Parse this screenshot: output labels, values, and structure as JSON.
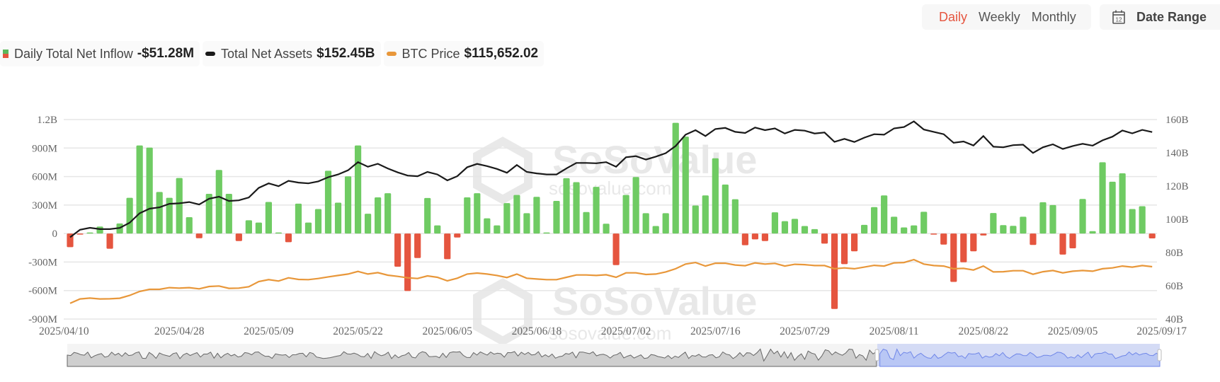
{
  "controls": {
    "periods": [
      {
        "label": "Daily",
        "active": true
      },
      {
        "label": "Weekly",
        "active": false
      },
      {
        "label": "Monthly",
        "active": false
      }
    ],
    "date_range_label": "Date Range",
    "date_range_icon": "calendar-icon",
    "calendar_day": "12"
  },
  "legend": [
    {
      "label": "Daily Total Net Inflow",
      "value": "-$51.28M"
    },
    {
      "label": "Total Net Assets",
      "value": "$152.45B"
    },
    {
      "label": "BTC Price",
      "value": "$115,652.02"
    }
  ],
  "watermark": "SoSoValue",
  "watermark_sub": "sosovalue.com",
  "colors": {
    "inflow_positive": "#6fcb63",
    "inflow_negative": "#e5553f",
    "net_assets": "#1a1a1a",
    "btc_price": "#e8973a",
    "navigator_selection": "#b9c7f5"
  },
  "chart_data": {
    "type": "bar+line",
    "grid": true,
    "legend_position": "top-left",
    "left_axis": {
      "ticks": [
        "-900M",
        "-600M",
        "-300M",
        "0",
        "300M",
        "600M",
        "900M",
        "1.2B"
      ],
      "range_millions": [
        -900,
        1200
      ]
    },
    "right_axis": {
      "ticks": [
        "40B",
        "60B",
        "80B",
        "100B",
        "120B",
        "140B",
        "160B"
      ],
      "range_billions": [
        40,
        160
      ]
    },
    "x_ticks": [
      "2025/04/10",
      "2025/04/28",
      "2025/05/09",
      "2025/05/22",
      "2025/06/05",
      "2025/06/18",
      "2025/07/02",
      "2025/07/16",
      "2025/07/29",
      "2025/08/11",
      "2025/08/22",
      "2025/09/05",
      "2025/09/17"
    ],
    "categories": [
      "2025/04/10",
      "2025/04/11",
      "2025/04/14",
      "2025/04/15",
      "2025/04/16",
      "2025/04/17",
      "2025/04/21",
      "2025/04/22",
      "2025/04/23",
      "2025/04/24",
      "2025/04/25",
      "2025/04/28",
      "2025/04/29",
      "2025/04/30",
      "2025/05/01",
      "2025/05/02",
      "2025/05/05",
      "2025/05/06",
      "2025/05/07",
      "2025/05/08",
      "2025/05/09",
      "2025/05/12",
      "2025/05/13",
      "2025/05/14",
      "2025/05/15",
      "2025/05/16",
      "2025/05/19",
      "2025/05/20",
      "2025/05/21",
      "2025/05/22",
      "2025/05/23",
      "2025/05/27",
      "2025/05/28",
      "2025/05/29",
      "2025/05/30",
      "2025/06/02",
      "2025/06/03",
      "2025/06/04",
      "2025/06/05",
      "2025/06/06",
      "2025/06/09",
      "2025/06/10",
      "2025/06/11",
      "2025/06/12",
      "2025/06/13",
      "2025/06/16",
      "2025/06/17",
      "2025/06/18",
      "2025/06/20",
      "2025/06/23",
      "2025/06/24",
      "2025/06/25",
      "2025/06/26",
      "2025/06/27",
      "2025/06/30",
      "2025/07/01",
      "2025/07/02",
      "2025/07/03",
      "2025/07/07",
      "2025/07/08",
      "2025/07/09",
      "2025/07/10",
      "2025/07/11",
      "2025/07/14",
      "2025/07/15",
      "2025/07/16",
      "2025/07/17",
      "2025/07/18",
      "2025/07/21",
      "2025/07/22",
      "2025/07/23",
      "2025/07/24",
      "2025/07/25",
      "2025/07/28",
      "2025/07/29",
      "2025/07/30",
      "2025/07/31",
      "2025/08/01",
      "2025/08/04",
      "2025/08/05",
      "2025/08/06",
      "2025/08/07",
      "2025/08/08",
      "2025/08/11",
      "2025/08/12",
      "2025/08/13",
      "2025/08/14",
      "2025/08/15",
      "2025/08/18",
      "2025/08/19",
      "2025/08/20",
      "2025/08/21",
      "2025/08/22",
      "2025/08/25",
      "2025/08/26",
      "2025/08/27",
      "2025/08/28",
      "2025/08/29",
      "2025/09/02",
      "2025/09/03",
      "2025/09/04",
      "2025/09/05",
      "2025/09/08",
      "2025/09/09",
      "2025/09/10",
      "2025/09/11",
      "2025/09/12",
      "2025/09/15",
      "2025/09/16",
      "2025/09/17"
    ],
    "series": [
      {
        "name": "Daily Total Net Inflow",
        "unit": "M USD",
        "type": "bar",
        "axis": "left",
        "values": [
          -143,
          -5,
          2,
          74,
          -160,
          106,
          376,
          927,
          905,
          438,
          376,
          585,
          172,
          -49,
          418,
          669,
          418,
          -79,
          140,
          116,
          332,
          2,
          -91,
          315,
          116,
          258,
          661,
          325,
          602,
          927,
          209,
          381,
          425,
          -349,
          -605,
          -258,
          374,
          86,
          -270,
          -42,
          381,
          425,
          160,
          86,
          320,
          406,
          214,
          386,
          3,
          344,
          583,
          541,
          226,
          492,
          103,
          -332,
          406,
          595,
          214,
          79,
          214,
          1166,
          1020,
          295,
          401,
          792,
          516,
          361,
          -123,
          -61,
          -79,
          224,
          130,
          155,
          79,
          47,
          -106,
          -794,
          -322,
          -187,
          91,
          278,
          401,
          177,
          64,
          86,
          229,
          -10,
          -116,
          -509,
          -302,
          -187,
          -20,
          216,
          89,
          81,
          177,
          -120,
          330,
          300,
          -221,
          -155,
          364,
          25,
          750,
          546,
          634,
          258,
          288,
          -51.28
        ]
      },
      {
        "name": "Total Net Assets",
        "unit": "B USD",
        "type": "line",
        "axis": "right",
        "values": [
          89.2,
          93.7,
          94.9,
          94.1,
          94.1,
          94.8,
          97.9,
          103.6,
          106.4,
          107.2,
          109.3,
          109.6,
          110.4,
          108.9,
          112.4,
          113.6,
          111.0,
          111.4,
          113.1,
          118.9,
          121.6,
          119.9,
          123.1,
          122.1,
          121.6,
          122.8,
          125.3,
          127.0,
          129.5,
          134.4,
          131.6,
          133.4,
          130.6,
          128.2,
          126.3,
          125.9,
          128.5,
          127.0,
          123.4,
          125.9,
          131.3,
          133.3,
          132.0,
          130.3,
          128.0,
          132.7,
          128.5,
          127.6,
          127.0,
          127.0,
          130.6,
          133.9,
          133.9,
          133.7,
          134.4,
          131.6,
          137.3,
          138.0,
          135.9,
          137.7,
          139.8,
          144.1,
          150.9,
          153.6,
          150.1,
          154.3,
          155.0,
          152.6,
          151.9,
          155.2,
          153.6,
          154.7,
          151.6,
          153.8,
          153.3,
          151.6,
          152.2,
          146.6,
          148.4,
          146.5,
          149.1,
          151.2,
          150.9,
          154.7,
          155.5,
          158.9,
          154.0,
          152.6,
          151.2,
          146.0,
          146.8,
          144.4,
          150.1,
          143.7,
          143.3,
          144.6,
          144.9,
          139.9,
          143.3,
          145.1,
          142.3,
          144.1,
          145.4,
          144.3,
          147.5,
          149.7,
          153.4,
          151.7,
          153.8,
          152.45
        ]
      },
      {
        "name": "BTC Price",
        "unit": "USD",
        "type": "line",
        "axis": "hidden",
        "values": [
          79600,
          83800,
          84700,
          83800,
          84000,
          84500,
          87300,
          91200,
          93300,
          93300,
          95000,
          94500,
          95000,
          93800,
          96100,
          96600,
          94300,
          94500,
          95900,
          101000,
          102900,
          101500,
          104700,
          103100,
          102900,
          104000,
          105600,
          107000,
          108400,
          111000,
          108400,
          109800,
          107300,
          106100,
          104700,
          104000,
          106600,
          105200,
          101700,
          104300,
          108400,
          109400,
          108400,
          107000,
          104950,
          108400,
          104300,
          103500,
          102900,
          102900,
          105200,
          107500,
          107500,
          107000,
          107700,
          105200,
          109600,
          109600,
          108000,
          108400,
          110500,
          113600,
          118200,
          119800,
          116300,
          119100,
          119100,
          117300,
          116600,
          119400,
          118200,
          118900,
          116300,
          118000,
          117700,
          116800,
          116800,
          113600,
          114500,
          113600,
          115200,
          117000,
          116300,
          119400,
          119800,
          122600,
          118200,
          116800,
          116300,
          113600,
          114000,
          112400,
          116300,
          110500,
          110700,
          111700,
          111700,
          108200,
          110700,
          111900,
          109600,
          111200,
          111900,
          111200,
          113600,
          114500,
          116300,
          115200,
          116800,
          115652.02
        ]
      }
    ],
    "navigator": {
      "selection_start": "2025/04/10",
      "selection_end": "2025/09/17"
    }
  }
}
